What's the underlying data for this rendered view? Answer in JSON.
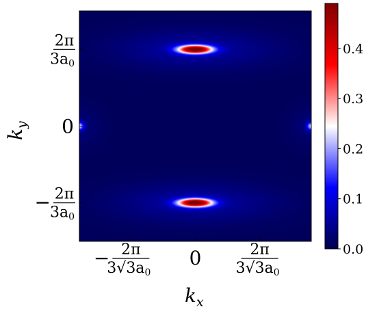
{
  "chart_data": {
    "type": "heatmap",
    "xlabel": "k",
    "xlabel_sub": "x",
    "ylabel": "k",
    "ylabel_sub": "y",
    "x_range": [
      -7.2,
      7.2
    ],
    "y_range": [
      -3.5,
      3.5
    ],
    "x_ticks": [
      {
        "value": -4.0,
        "sign": "−",
        "num": "2π",
        "den": "3√3a",
        "den_sub": "0"
      },
      {
        "value": 0,
        "label": "0"
      },
      {
        "value": 4.0,
        "sign": "",
        "num": "2π",
        "den": "3√3a",
        "den_sub": "0"
      }
    ],
    "y_ticks": [
      {
        "value": 2.33,
        "sign": "",
        "num": "2π",
        "den": "3a",
        "den_sub": "0"
      },
      {
        "value": 0,
        "label": "0"
      },
      {
        "value": -2.33,
        "sign": "−",
        "num": "2π",
        "den": "3a",
        "den_sub": "0"
      }
    ],
    "colorbar": {
      "colormap": "seismic",
      "min": 0.0,
      "max": 0.49,
      "ticks": [
        "0.0",
        "0.1",
        "0.2",
        "0.3",
        "0.4"
      ],
      "tick_values": [
        0.0,
        0.1,
        0.2,
        0.3,
        0.4
      ]
    },
    "hotspots": [
      {
        "x": 0,
        "y": 2.33,
        "peak": 0.49,
        "sigma_x": 0.75,
        "sigma_y": 0.09
      },
      {
        "x": 0,
        "y": -2.33,
        "peak": 0.49,
        "sigma_x": 0.75,
        "sigma_y": 0.09
      },
      {
        "x": -7.2,
        "y": 0,
        "peak": 0.2,
        "sigma_x": 0.2,
        "sigma_y": 0.09
      },
      {
        "x": 7.2,
        "y": 0,
        "peak": 0.2,
        "sigma_x": 0.2,
        "sigma_y": 0.09
      }
    ],
    "background_value": 0.01
  }
}
